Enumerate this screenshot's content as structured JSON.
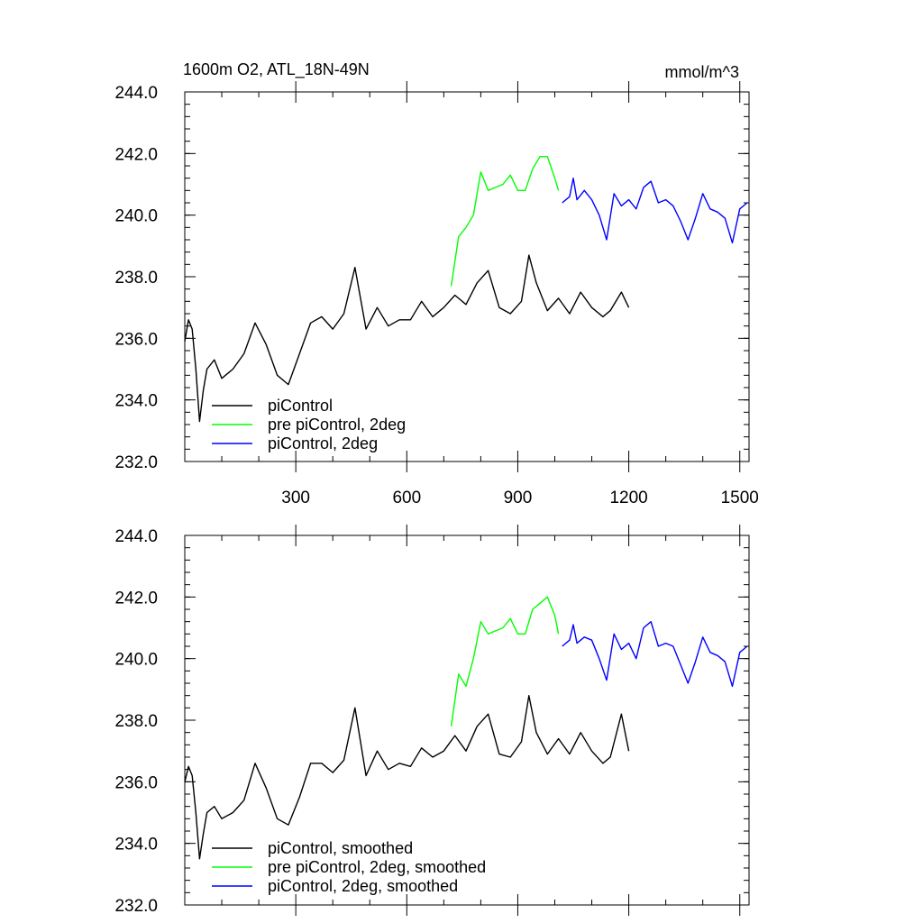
{
  "chart_data": [
    {
      "type": "line",
      "title": "1600m O2, ATL_18N-49N",
      "units": "mmol/m^3",
      "xlim": [
        0,
        1525
      ],
      "ylim": [
        232,
        244
      ],
      "yticks": [
        "232.0",
        "234.0",
        "236.0",
        "238.0",
        "240.0",
        "242.0",
        "244.0"
      ],
      "xticks": [
        "300",
        "600",
        "900",
        "1200",
        "1500"
      ],
      "legend": [
        "piControl",
        "pre piControl, 2deg",
        "piControl, 2deg"
      ],
      "series": [
        {
          "name": "piControl",
          "color": "#000000",
          "x": [
            0,
            10,
            20,
            30,
            40,
            50,
            60,
            80,
            100,
            130,
            160,
            190,
            220,
            250,
            280,
            310,
            340,
            370,
            400,
            430,
            460,
            490,
            520,
            550,
            580,
            610,
            640,
            670,
            700,
            730,
            760,
            790,
            820,
            850,
            880,
            910,
            930,
            950,
            980,
            1010,
            1040,
            1070,
            1100,
            1130,
            1150,
            1180,
            1200
          ],
          "values": [
            235.9,
            236.6,
            236.3,
            235.0,
            233.3,
            234.3,
            235.0,
            235.3,
            234.7,
            235.0,
            235.5,
            236.5,
            235.8,
            234.8,
            234.5,
            235.5,
            236.5,
            236.7,
            236.3,
            236.8,
            238.3,
            236.3,
            237.0,
            236.4,
            236.6,
            236.6,
            237.2,
            236.7,
            237.0,
            237.4,
            237.1,
            237.8,
            238.2,
            237.0,
            236.8,
            237.2,
            238.7,
            237.8,
            236.9,
            237.3,
            236.8,
            237.5,
            237.0,
            236.7,
            236.9,
            237.5,
            237.0
          ]
        },
        {
          "name": "pre piControl, 2deg",
          "color": "#00ff00",
          "x": [
            720,
            740,
            760,
            780,
            800,
            820,
            840,
            860,
            880,
            900,
            920,
            940,
            960,
            980,
            1000,
            1010
          ],
          "values": [
            237.7,
            239.3,
            239.6,
            240.0,
            241.4,
            240.8,
            240.9,
            241.0,
            241.3,
            240.8,
            240.8,
            241.5,
            241.9,
            241.9,
            241.2,
            240.8
          ]
        },
        {
          "name": "piControl, 2deg",
          "color": "#0000ff",
          "x": [
            1020,
            1040,
            1050,
            1060,
            1080,
            1100,
            1120,
            1140,
            1160,
            1180,
            1200,
            1220,
            1240,
            1260,
            1280,
            1300,
            1320,
            1340,
            1360,
            1380,
            1400,
            1420,
            1440,
            1460,
            1480,
            1500,
            1520
          ],
          "values": [
            240.4,
            240.6,
            241.2,
            240.5,
            240.8,
            240.5,
            240.0,
            239.2,
            240.7,
            240.3,
            240.5,
            240.2,
            240.9,
            241.1,
            240.4,
            240.5,
            240.3,
            239.8,
            239.2,
            239.9,
            240.7,
            240.2,
            240.1,
            239.9,
            239.1,
            240.2,
            240.4
          ]
        }
      ]
    },
    {
      "type": "line",
      "title": "",
      "units": "",
      "xlim": [
        0,
        1525
      ],
      "ylim": [
        232,
        244
      ],
      "yticks": [
        "232.0",
        "234.0",
        "236.0",
        "238.0",
        "240.0",
        "242.0",
        "244.0"
      ],
      "xticks": [],
      "legend": [
        "piControl, smoothed",
        "pre piControl, 2deg, smoothed",
        "piControl, 2deg, smoothed"
      ],
      "series": [
        {
          "name": "piControl, smoothed",
          "color": "#000000",
          "x": [
            0,
            10,
            20,
            30,
            40,
            50,
            60,
            80,
            100,
            130,
            160,
            190,
            220,
            250,
            280,
            310,
            340,
            370,
            400,
            430,
            460,
            490,
            520,
            550,
            580,
            610,
            640,
            670,
            700,
            730,
            760,
            790,
            820,
            850,
            880,
            910,
            930,
            950,
            980,
            1010,
            1040,
            1070,
            1100,
            1130,
            1150,
            1180,
            1200
          ],
          "values": [
            236.0,
            236.5,
            236.2,
            235.0,
            233.5,
            234.3,
            235.0,
            235.2,
            234.8,
            235.0,
            235.4,
            236.6,
            235.8,
            234.8,
            234.6,
            235.5,
            236.6,
            236.6,
            236.3,
            236.7,
            238.4,
            236.2,
            237.0,
            236.4,
            236.6,
            236.5,
            237.1,
            236.8,
            237.0,
            237.5,
            237.0,
            237.8,
            238.2,
            236.9,
            236.8,
            237.3,
            238.8,
            237.6,
            236.9,
            237.4,
            236.9,
            237.6,
            237.0,
            236.6,
            236.8,
            238.2,
            237.0
          ]
        },
        {
          "name": "pre piControl, 2deg, smoothed",
          "color": "#00ff00",
          "x": [
            720,
            740,
            760,
            780,
            800,
            820,
            840,
            860,
            880,
            900,
            920,
            940,
            960,
            980,
            1000,
            1010
          ],
          "values": [
            237.8,
            239.5,
            239.1,
            240.0,
            241.2,
            240.8,
            240.9,
            241.0,
            241.3,
            240.8,
            240.8,
            241.6,
            241.8,
            242.0,
            241.4,
            240.8
          ]
        },
        {
          "name": "piControl, 2deg, smoothed",
          "color": "#0000ff",
          "x": [
            1020,
            1040,
            1050,
            1060,
            1080,
            1100,
            1120,
            1140,
            1160,
            1180,
            1200,
            1220,
            1240,
            1260,
            1280,
            1300,
            1320,
            1340,
            1360,
            1380,
            1400,
            1420,
            1440,
            1460,
            1480,
            1500,
            1520
          ],
          "values": [
            240.4,
            240.6,
            241.1,
            240.5,
            240.7,
            240.6,
            240.0,
            239.3,
            240.8,
            240.3,
            240.5,
            240.0,
            241.0,
            241.2,
            240.4,
            240.5,
            240.4,
            239.8,
            239.2,
            239.9,
            240.7,
            240.2,
            240.1,
            239.9,
            239.1,
            240.2,
            240.4
          ]
        }
      ]
    }
  ]
}
